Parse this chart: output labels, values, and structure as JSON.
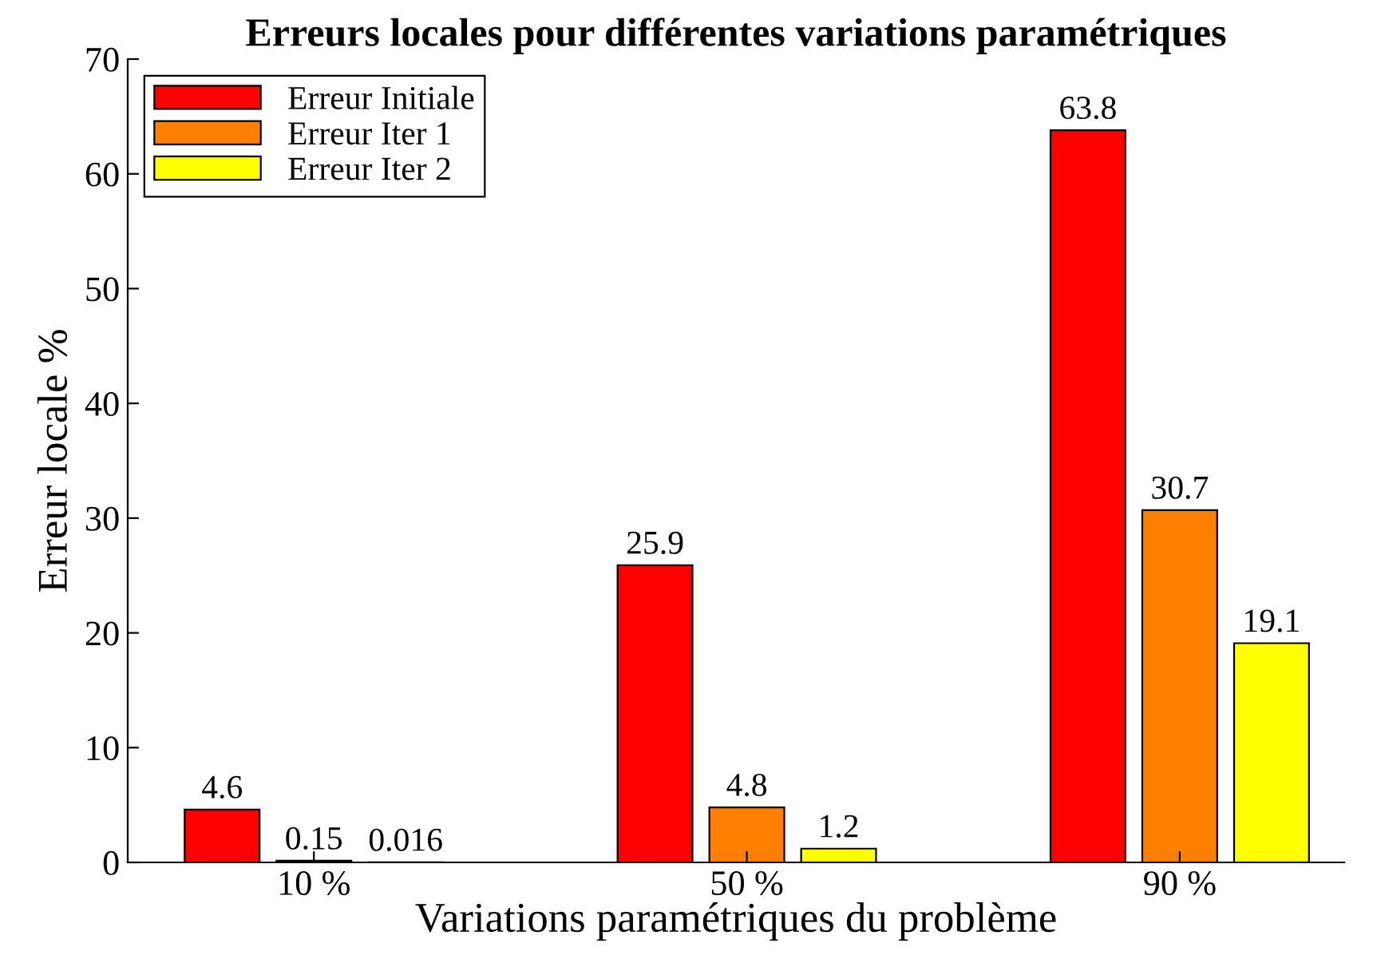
{
  "chart_data": {
    "type": "bar",
    "title": "Erreurs locales pour différentes variations paramétriques",
    "xlabel": "Variations paramétriques du problème",
    "ylabel": "Erreur locale %",
    "categories": [
      "10 %",
      "50 %",
      "90 %"
    ],
    "series": [
      {
        "name": "Erreur Initiale",
        "color": "#ff0000",
        "values": [
          4.6,
          25.9,
          63.8
        ]
      },
      {
        "name": "Erreur Iter 1",
        "color": "#ff8000",
        "values": [
          0.15,
          4.8,
          30.7
        ]
      },
      {
        "name": "Erreur Iter 2",
        "color": "#ffff00",
        "values": [
          0.016,
          1.2,
          19.1
        ]
      }
    ],
    "ylim": [
      0,
      70
    ],
    "yticks": [
      0,
      10,
      20,
      30,
      40,
      50,
      60,
      70
    ],
    "data_labels": true,
    "legend": "top left",
    "grid": false
  }
}
